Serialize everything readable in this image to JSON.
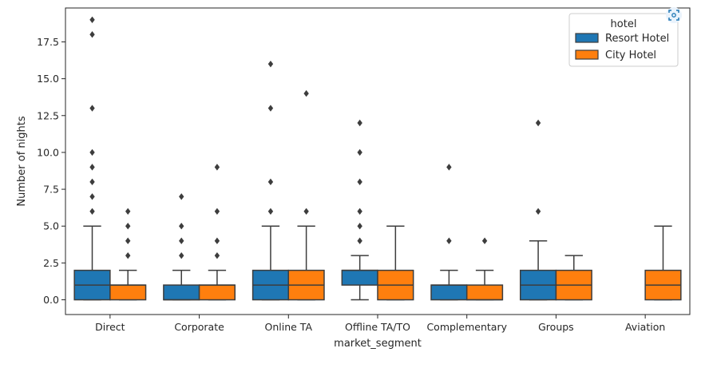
{
  "chart_data": {
    "type": "box",
    "xlabel": "market_segment",
    "ylabel": "Number of nights",
    "categories": [
      "Direct",
      "Corporate",
      "Online TA",
      "Offline TA/TO",
      "Complementary",
      "Groups",
      "Aviation"
    ],
    "ylim": [
      -1.0,
      19.8
    ],
    "yticks": [
      "0.0",
      "2.5",
      "5.0",
      "7.5",
      "10.0",
      "12.5",
      "15.0",
      "17.5"
    ],
    "grid": false,
    "legend": {
      "title": "hotel",
      "position": "top-right",
      "entries": [
        "Resort Hotel",
        "City Hotel"
      ]
    },
    "series": [
      {
        "name": "Resort Hotel",
        "color": "#1f77b4",
        "boxes": [
          {
            "q1": 0,
            "median": 1,
            "q3": 2,
            "whisker_low": 0,
            "whisker_high": 5,
            "outliers": [
              6,
              7,
              8,
              9,
              10,
              13,
              18,
              19
            ]
          },
          {
            "q1": 0,
            "median": 0,
            "q3": 1,
            "whisker_low": 0,
            "whisker_high": 2,
            "outliers": [
              3,
              4,
              5,
              7
            ]
          },
          {
            "q1": 0,
            "median": 1,
            "q3": 2,
            "whisker_low": 0,
            "whisker_high": 5,
            "outliers": [
              6,
              8,
              13,
              16
            ]
          },
          {
            "q1": 1,
            "median": 2,
            "q3": 2,
            "whisker_low": 0,
            "whisker_high": 3,
            "outliers": [
              4,
              5,
              6,
              8,
              10,
              12
            ]
          },
          {
            "q1": 0,
            "median": 1,
            "q3": 1,
            "whisker_low": 0,
            "whisker_high": 2,
            "outliers": [
              4,
              9
            ]
          },
          {
            "q1": 0,
            "median": 1,
            "q3": 2,
            "whisker_low": 0,
            "whisker_high": 4,
            "outliers": [
              6,
              12
            ]
          },
          null
        ]
      },
      {
        "name": "City Hotel",
        "color": "#ff7f0e",
        "boxes": [
          {
            "q1": 0,
            "median": 1,
            "q3": 1,
            "whisker_low": 0,
            "whisker_high": 2,
            "outliers": [
              3,
              4,
              5,
              6
            ]
          },
          {
            "q1": 0,
            "median": 1,
            "q3": 1,
            "whisker_low": 0,
            "whisker_high": 2,
            "outliers": [
              3,
              4,
              6,
              9
            ]
          },
          {
            "q1": 0,
            "median": 1,
            "q3": 2,
            "whisker_low": 0,
            "whisker_high": 5,
            "outliers": [
              6,
              14
            ]
          },
          {
            "q1": 0,
            "median": 1,
            "q3": 2,
            "whisker_low": 0,
            "whisker_high": 5,
            "outliers": []
          },
          {
            "q1": 0,
            "median": 0,
            "q3": 1,
            "whisker_low": 0,
            "whisker_high": 2,
            "outliers": [
              4
            ]
          },
          {
            "q1": 0,
            "median": 1,
            "q3": 2,
            "whisker_low": 0,
            "whisker_high": 3,
            "outliers": []
          },
          {
            "q1": 0,
            "median": 1,
            "q3": 2,
            "whisker_low": 0,
            "whisker_high": 5,
            "outliers": []
          }
        ]
      }
    ]
  },
  "icons": {
    "corner": "screenshot-icon"
  }
}
